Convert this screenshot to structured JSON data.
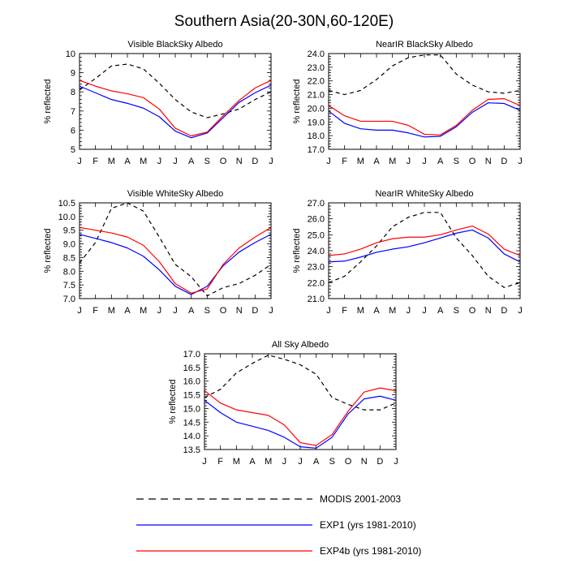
{
  "title": "Southern Asia(20-30N,60-120E)",
  "months": [
    "J",
    "F",
    "M",
    "A",
    "M",
    "J",
    "J",
    "A",
    "S",
    "O",
    "N",
    "D",
    "J"
  ],
  "legend": [
    {
      "label": "MODIS 2001-2003",
      "color": "#000000",
      "dash": true
    },
    {
      "label": "EXP1 (yrs 1981-2010)",
      "color": "#0000ff",
      "dash": false
    },
    {
      "label": "EXP4b (yrs 1981-2010)",
      "color": "#ff0000",
      "dash": false
    }
  ],
  "chart_data": [
    {
      "type": "line",
      "title": "Visible BlackSky Albedo",
      "xlabel": "",
      "ylabel": "% reflected",
      "ylim": [
        5,
        10
      ],
      "yticks": [
        5,
        6,
        7,
        8,
        9,
        10
      ],
      "ytick_labels": [
        "5",
        "6",
        "7",
        "8",
        "9",
        "10"
      ],
      "categories": [
        "J",
        "F",
        "M",
        "A",
        "M",
        "J",
        "J",
        "A",
        "S",
        "O",
        "N",
        "D",
        "J"
      ],
      "series": [
        {
          "name": "MODIS 2001-2003",
          "color": "#000000",
          "dash": true,
          "values": [
            8.1,
            8.7,
            9.35,
            9.45,
            9.2,
            8.45,
            7.6,
            6.95,
            6.65,
            6.85,
            7.1,
            7.6,
            8.0
          ]
        },
        {
          "name": "EXP1 (yrs 1981-2010)",
          "color": "#0000ff",
          "dash": false,
          "values": [
            8.3,
            7.95,
            7.6,
            7.4,
            7.15,
            6.7,
            5.95,
            5.6,
            5.85,
            6.65,
            7.45,
            7.95,
            8.35
          ]
        },
        {
          "name": "EXP4b (yrs 1981-2010)",
          "color": "#ff0000",
          "dash": false,
          "values": [
            8.6,
            8.3,
            8.05,
            7.9,
            7.7,
            7.1,
            6.1,
            5.7,
            5.9,
            6.75,
            7.55,
            8.2,
            8.6
          ]
        }
      ]
    },
    {
      "type": "line",
      "title": "NearIR BlackSky Albedo",
      "xlabel": "",
      "ylabel": "% reflected",
      "ylim": [
        17,
        24
      ],
      "yticks": [
        17,
        18,
        19,
        20,
        21,
        22,
        23,
        24
      ],
      "ytick_labels": [
        "17.0",
        "18.0",
        "19.0",
        "20.0",
        "21.0",
        "22.0",
        "23.0",
        "24.0"
      ],
      "categories": [
        "J",
        "F",
        "M",
        "A",
        "M",
        "J",
        "J",
        "A",
        "S",
        "O",
        "N",
        "D",
        "J"
      ],
      "series": [
        {
          "name": "MODIS 2001-2003",
          "color": "#000000",
          "dash": true,
          "values": [
            21.3,
            21.0,
            21.3,
            22.1,
            23.1,
            23.7,
            23.9,
            23.9,
            22.5,
            21.7,
            21.2,
            21.1,
            21.3
          ]
        },
        {
          "name": "EXP1 (yrs 1981-2010)",
          "color": "#0000ff",
          "dash": false,
          "values": [
            19.8,
            18.9,
            18.5,
            18.4,
            18.4,
            18.2,
            17.9,
            17.95,
            18.65,
            19.7,
            20.4,
            20.35,
            19.85
          ]
        },
        {
          "name": "EXP4b (yrs 1981-2010)",
          "color": "#ff0000",
          "dash": false,
          "values": [
            20.2,
            19.45,
            19.05,
            19.05,
            19.05,
            18.75,
            18.1,
            18.05,
            18.75,
            19.85,
            20.65,
            20.7,
            20.2
          ]
        }
      ]
    },
    {
      "type": "line",
      "title": "Visible WhiteSky Albedo",
      "xlabel": "",
      "ylabel": "% reflected",
      "ylim": [
        7,
        10.5
      ],
      "yticks": [
        7,
        7.5,
        8,
        8.5,
        9,
        9.5,
        10,
        10.5
      ],
      "ytick_labels": [
        "7.0",
        "7.5",
        "8.0",
        "8.5",
        "9.0",
        "9.5",
        "10.0",
        "10.5"
      ],
      "categories": [
        "J",
        "F",
        "M",
        "A",
        "M",
        "J",
        "J",
        "A",
        "S",
        "O",
        "N",
        "D",
        "J"
      ],
      "series": [
        {
          "name": "MODIS 2001-2003",
          "color": "#000000",
          "dash": true,
          "values": [
            8.3,
            9.05,
            10.3,
            10.5,
            10.2,
            9.25,
            8.25,
            7.8,
            7.1,
            7.4,
            7.55,
            7.85,
            8.25
          ]
        },
        {
          "name": "EXP1 (yrs 1981-2010)",
          "color": "#0000ff",
          "dash": false,
          "values": [
            9.35,
            9.2,
            9.05,
            8.85,
            8.55,
            8.05,
            7.45,
            7.15,
            7.45,
            8.2,
            8.7,
            9.05,
            9.35
          ]
        },
        {
          "name": "EXP4b (yrs 1981-2010)",
          "color": "#ff0000",
          "dash": false,
          "values": [
            9.6,
            9.5,
            9.4,
            9.25,
            8.95,
            8.35,
            7.55,
            7.2,
            7.35,
            8.25,
            8.85,
            9.25,
            9.6
          ]
        }
      ]
    },
    {
      "type": "line",
      "title": "NearIR WhiteSky Albedo",
      "xlabel": "",
      "ylabel": "% reflected",
      "ylim": [
        21,
        27
      ],
      "yticks": [
        21,
        22,
        23,
        24,
        25,
        26,
        27
      ],
      "ytick_labels": [
        "21.0",
        "22.0",
        "23.0",
        "24.0",
        "25.0",
        "26.0",
        "27.0"
      ],
      "categories": [
        "J",
        "F",
        "M",
        "A",
        "M",
        "J",
        "J",
        "A",
        "S",
        "O",
        "N",
        "D",
        "J"
      ],
      "series": [
        {
          "name": "MODIS 2001-2003",
          "color": "#000000",
          "dash": true,
          "values": [
            22.0,
            22.4,
            23.3,
            24.3,
            25.5,
            26.1,
            26.4,
            26.4,
            24.8,
            23.7,
            22.4,
            21.7,
            22.0
          ]
        },
        {
          "name": "EXP1 (yrs 1981-2010)",
          "color": "#0000ff",
          "dash": false,
          "values": [
            23.3,
            23.35,
            23.6,
            23.9,
            24.1,
            24.25,
            24.5,
            24.8,
            25.1,
            25.3,
            24.8,
            23.8,
            23.3
          ]
        },
        {
          "name": "EXP4b (yrs 1981-2010)",
          "color": "#ff0000",
          "dash": false,
          "values": [
            23.7,
            23.8,
            24.1,
            24.5,
            24.75,
            24.85,
            24.85,
            25.0,
            25.3,
            25.55,
            25.05,
            24.1,
            23.7
          ]
        }
      ]
    },
    {
      "type": "line",
      "title": "All Sky Albedo",
      "xlabel": "",
      "ylabel": "% reflected",
      "ylim": [
        13.5,
        17
      ],
      "yticks": [
        13.5,
        14,
        14.5,
        15,
        15.5,
        16,
        16.5,
        17
      ],
      "ytick_labels": [
        "13.5",
        "14.0",
        "14.5",
        "15.0",
        "15.5",
        "16.0",
        "16.5",
        "17.0"
      ],
      "categories": [
        "J",
        "F",
        "M",
        "A",
        "M",
        "J",
        "J",
        "A",
        "S",
        "O",
        "N",
        "D",
        "J"
      ],
      "series": [
        {
          "name": "MODIS 2001-2003",
          "color": "#000000",
          "dash": true,
          "values": [
            15.4,
            15.7,
            16.3,
            16.65,
            16.95,
            16.8,
            16.6,
            16.25,
            15.4,
            15.15,
            14.95,
            14.95,
            15.2
          ]
        },
        {
          "name": "EXP1 (yrs 1981-2010)",
          "color": "#0000ff",
          "dash": false,
          "values": [
            15.3,
            14.85,
            14.5,
            14.35,
            14.2,
            13.95,
            13.6,
            13.55,
            13.95,
            14.8,
            15.35,
            15.45,
            15.3
          ]
        },
        {
          "name": "EXP4b (yrs 1981-2010)",
          "color": "#ff0000",
          "dash": false,
          "values": [
            15.65,
            15.2,
            14.95,
            14.85,
            14.75,
            14.4,
            13.75,
            13.65,
            14.05,
            14.9,
            15.6,
            15.75,
            15.65
          ]
        }
      ]
    }
  ]
}
